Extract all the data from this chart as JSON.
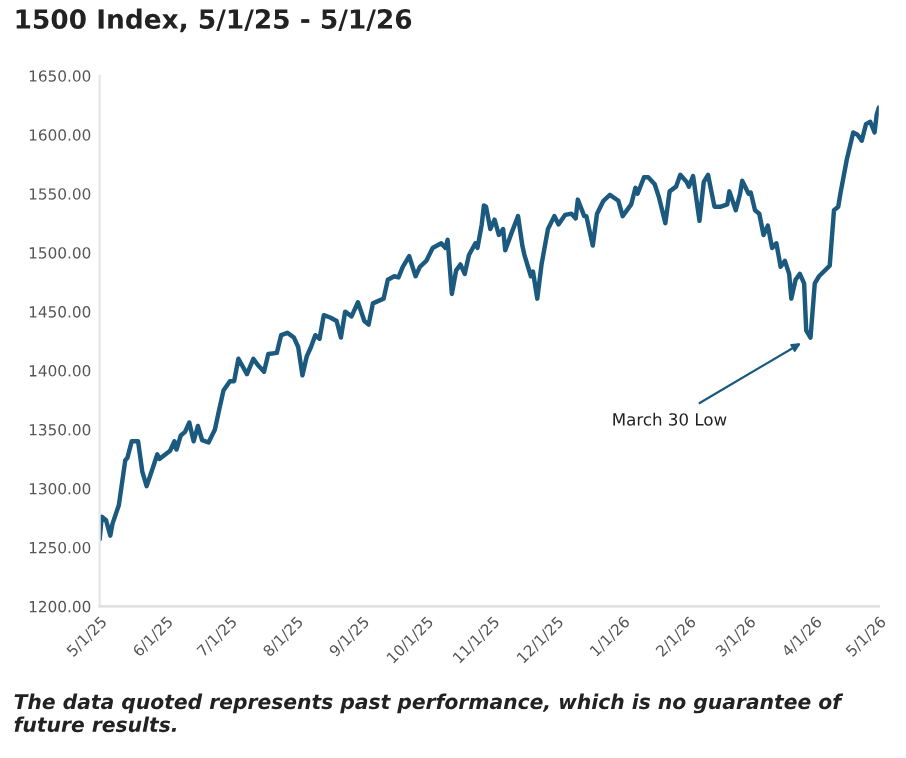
{
  "chart_data": {
    "type": "line",
    "title": "1500 Index, 5/1/25 - 5/1/26",
    "x": [
      "2025-05-01",
      "2025-05-02",
      "2025-05-04",
      "2025-05-06",
      "2025-05-07",
      "2025-05-10",
      "2025-05-13",
      "2025-05-14",
      "2025-05-16",
      "2025-05-19",
      "2025-05-21",
      "2025-05-23",
      "2025-05-26",
      "2025-05-28",
      "2025-05-29",
      "2025-06-03",
      "2025-06-05",
      "2025-06-06",
      "2025-06-08",
      "2025-06-10",
      "2025-06-12",
      "2025-06-14",
      "2025-06-16",
      "2025-06-18",
      "2025-06-21",
      "2025-06-24",
      "2025-06-26",
      "2025-06-28",
      "2025-07-01",
      "2025-07-03",
      "2025-07-05",
      "2025-07-09",
      "2025-07-12",
      "2025-07-14",
      "2025-07-17",
      "2025-07-19",
      "2025-07-23",
      "2025-07-25",
      "2025-07-28",
      "2025-07-31",
      "2025-08-02",
      "2025-08-04",
      "2025-08-06",
      "2025-08-08",
      "2025-08-10",
      "2025-08-12",
      "2025-08-14",
      "2025-08-17",
      "2025-08-20",
      "2025-08-22",
      "2025-08-24",
      "2025-08-27",
      "2025-08-30",
      "2025-09-02",
      "2025-09-04",
      "2025-09-06",
      "2025-09-11",
      "2025-09-13",
      "2025-09-16",
      "2025-09-18",
      "2025-09-20",
      "2025-09-23",
      "2025-09-26",
      "2025-09-28",
      "2025-10-01",
      "2025-10-04",
      "2025-10-08",
      "2025-10-10",
      "2025-10-11",
      "2025-10-13",
      "2025-10-15",
      "2025-10-17",
      "2025-10-19",
      "2025-10-21",
      "2025-10-24",
      "2025-10-25",
      "2025-10-27",
      "2025-10-28",
      "2025-10-29",
      "2025-10-31",
      "2025-11-02",
      "2025-11-04",
      "2025-11-06",
      "2025-11-07",
      "2025-11-10",
      "2025-11-13",
      "2025-11-15",
      "2025-11-16",
      "2025-11-19",
      "2025-11-20",
      "2025-11-22",
      "2025-11-24",
      "2025-11-27",
      "2025-11-30",
      "2025-12-02",
      "2025-12-05",
      "2025-12-08",
      "2025-12-10",
      "2025-12-11",
      "2025-12-14",
      "2025-12-15",
      "2025-12-18",
      "2025-12-20",
      "2025-12-23",
      "2025-12-26",
      "2025-12-30",
      "2026-01-01",
      "2026-01-05",
      "2026-01-07",
      "2026-01-08",
      "2026-01-11",
      "2026-01-13",
      "2026-01-16",
      "2026-01-18",
      "2026-01-21",
      "2026-01-23",
      "2026-01-26",
      "2026-01-28",
      "2026-01-31",
      "2026-02-01",
      "2026-02-03",
      "2026-02-06",
      "2026-02-08",
      "2026-02-10",
      "2026-02-13",
      "2026-02-16",
      "2026-02-19",
      "2026-02-20",
      "2026-02-23",
      "2026-02-25",
      "2026-02-26",
      "2026-03-01",
      "2026-03-02",
      "2026-03-04",
      "2026-03-06",
      "2026-03-08",
      "2026-03-10",
      "2026-03-12",
      "2026-03-14",
      "2026-03-16",
      "2026-03-18",
      "2026-03-20",
      "2026-03-21",
      "2026-03-23",
      "2026-03-25",
      "2026-03-27",
      "2026-03-28",
      "2026-03-30",
      "2026-04-01",
      "2026-04-03",
      "2026-04-08",
      "2026-04-10",
      "2026-04-12",
      "2026-04-13",
      "2026-04-16",
      "2026-04-19",
      "2026-04-21",
      "2026-04-23",
      "2026-04-25",
      "2026-04-27",
      "2026-04-29",
      "2026-04-30",
      "2026-05-01"
    ],
    "series": [
      {
        "color": "#1b5a7e",
        "values": [
          1257,
          1276,
          1273,
          1260,
          1270,
          1286,
          1324,
          1326,
          1340,
          1340,
          1314,
          1302,
          1318,
          1329,
          1325,
          1332,
          1340,
          1333,
          1345,
          1348,
          1356,
          1340,
          1353,
          1341,
          1339,
          1350,
          1367,
          1383,
          1391,
          1391,
          1410,
          1397,
          1410,
          1405,
          1399,
          1414,
          1415,
          1430,
          1432,
          1428,
          1420,
          1396,
          1412,
          1420,
          1430,
          1427,
          1447,
          1445,
          1442,
          1428,
          1450,
          1446,
          1458,
          1442,
          1439,
          1457,
          1461,
          1477,
          1480,
          1479,
          1488,
          1497,
          1480,
          1488,
          1493,
          1504,
          1508,
          1504,
          1511,
          1465,
          1485,
          1490,
          1482,
          1498,
          1508,
          1504,
          1524,
          1540,
          1539,
          1520,
          1528,
          1515,
          1520,
          1502,
          1517,
          1531,
          1506,
          1498,
          1480,
          1484,
          1461,
          1490,
          1520,
          1531,
          1524,
          1532,
          1533,
          1529,
          1545,
          1531,
          1531,
          1506,
          1533,
          1544,
          1549,
          1544,
          1531,
          1541,
          1555,
          1550,
          1564,
          1564,
          1558,
          1547,
          1525,
          1552,
          1556,
          1566,
          1560,
          1556,
          1565,
          1527,
          1560,
          1566,
          1539,
          1539,
          1541,
          1552,
          1536,
          1550,
          1561,
          1550,
          1551,
          1536,
          1533,
          1515,
          1523,
          1504,
          1508,
          1488,
          1493,
          1482,
          1461,
          1477,
          1482,
          1474,
          1434,
          1428,
          1474,
          1480,
          1489,
          1536,
          1539,
          1550,
          1579,
          1602,
          1600,
          1595,
          1609,
          1611,
          1602,
          1617,
          1623
        ]
      }
    ],
    "xlim": [
      "2025-05-01",
      "2026-05-01"
    ],
    "xticks": [
      {
        "value": "2025-05-01",
        "label": "5/1/25"
      },
      {
        "value": "2025-06-01",
        "label": "6/1/25"
      },
      {
        "value": "2025-07-01",
        "label": "7/1/25"
      },
      {
        "value": "2025-08-01",
        "label": "8/1/25"
      },
      {
        "value": "2025-09-01",
        "label": "9/1/25"
      },
      {
        "value": "2025-10-01",
        "label": "10/1/25"
      },
      {
        "value": "2025-11-01",
        "label": "11/1/25"
      },
      {
        "value": "2025-12-01",
        "label": "12/1/25"
      },
      {
        "value": "2026-01-01",
        "label": "1/1/26"
      },
      {
        "value": "2026-02-01",
        "label": "2/1/26"
      },
      {
        "value": "2026-03-01",
        "label": "3/1/26"
      },
      {
        "value": "2026-04-01",
        "label": "4/1/26"
      },
      {
        "value": "2026-05-01",
        "label": "5/1/26"
      }
    ],
    "ylim": [
      1200,
      1650
    ],
    "yticks": [
      {
        "value": 1200,
        "label": "1200.00"
      },
      {
        "value": 1250,
        "label": "1250.00"
      },
      {
        "value": 1300,
        "label": "1300.00"
      },
      {
        "value": 1350,
        "label": "1350.00"
      },
      {
        "value": 1400,
        "label": "1400.00"
      },
      {
        "value": 1450,
        "label": "1450.00"
      },
      {
        "value": 1500,
        "label": "1500.00"
      },
      {
        "value": 1550,
        "label": "1550.00"
      },
      {
        "value": 1600,
        "label": "1600.00"
      },
      {
        "value": 1650,
        "label": "1650.00"
      }
    ],
    "annotations": [
      {
        "text": "March 30 Low",
        "x": "2026-03-30",
        "y": 1428
      },
      "The data quoted represents past performance, which is no guarantee of future results."
    ],
    "grid": false,
    "legend": false,
    "line_style": "solid",
    "marker": "none"
  }
}
